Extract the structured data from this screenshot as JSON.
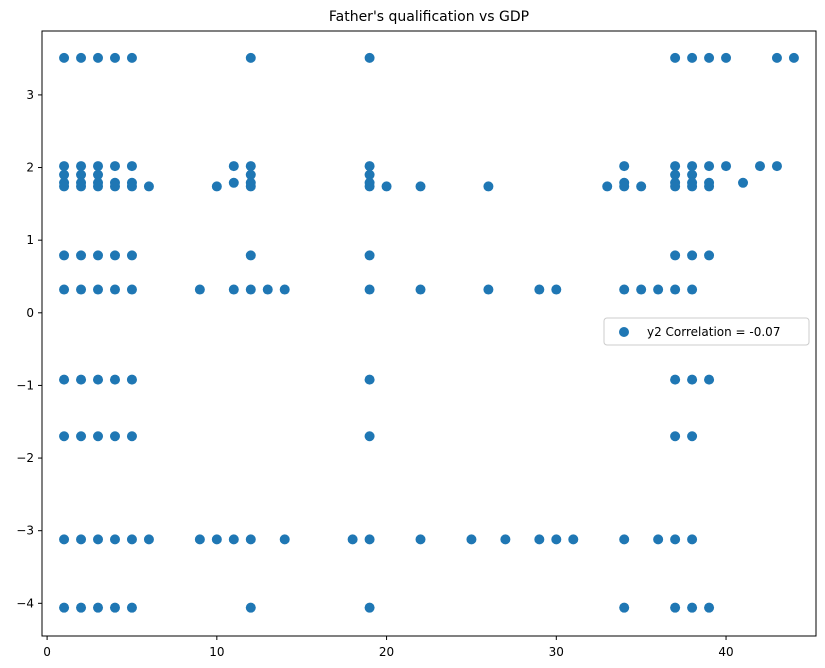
{
  "chart_data": {
    "type": "scatter",
    "title": "Father's qualification vs GDP",
    "xlabel": "",
    "ylabel": "",
    "xlim": [
      -0.3,
      45.3
    ],
    "ylim": [
      -4.45,
      3.88
    ],
    "xticks": [
      0,
      10,
      20,
      30,
      40
    ],
    "yticks": [
      -4,
      -3,
      -2,
      -1,
      0,
      1,
      2,
      3
    ],
    "grid": false,
    "legend_position": "center-right",
    "series": [
      {
        "name": "y2 Correlation = -0.07",
        "color": "#1f77b4",
        "points": [
          [
            1,
            3.51
          ],
          [
            2,
            3.51
          ],
          [
            3,
            3.51
          ],
          [
            4,
            3.51
          ],
          [
            5,
            3.51
          ],
          [
            12,
            3.51
          ],
          [
            19,
            3.51
          ],
          [
            37,
            3.51
          ],
          [
            38,
            3.51
          ],
          [
            39,
            3.51
          ],
          [
            40,
            3.51
          ],
          [
            43,
            3.51
          ],
          [
            44,
            3.51
          ],
          [
            1,
            2.02
          ],
          [
            2,
            2.02
          ],
          [
            3,
            2.02
          ],
          [
            4,
            2.02
          ],
          [
            5,
            2.02
          ],
          [
            11,
            2.02
          ],
          [
            12,
            2.02
          ],
          [
            19,
            2.02
          ],
          [
            34,
            2.02
          ],
          [
            37,
            2.02
          ],
          [
            38,
            2.02
          ],
          [
            39,
            2.02
          ],
          [
            40,
            2.02
          ],
          [
            42,
            2.02
          ],
          [
            43,
            2.02
          ],
          [
            1,
            1.9
          ],
          [
            2,
            1.9
          ],
          [
            3,
            1.9
          ],
          [
            12,
            1.9
          ],
          [
            19,
            1.9
          ],
          [
            37,
            1.9
          ],
          [
            38,
            1.9
          ],
          [
            1,
            1.79
          ],
          [
            2,
            1.79
          ],
          [
            3,
            1.79
          ],
          [
            4,
            1.79
          ],
          [
            5,
            1.79
          ],
          [
            11,
            1.79
          ],
          [
            12,
            1.79
          ],
          [
            19,
            1.79
          ],
          [
            34,
            1.79
          ],
          [
            37,
            1.79
          ],
          [
            38,
            1.79
          ],
          [
            39,
            1.79
          ],
          [
            41,
            1.79
          ],
          [
            1,
            1.74
          ],
          [
            2,
            1.74
          ],
          [
            3,
            1.74
          ],
          [
            4,
            1.74
          ],
          [
            5,
            1.74
          ],
          [
            6,
            1.74
          ],
          [
            10,
            1.74
          ],
          [
            12,
            1.74
          ],
          [
            19,
            1.74
          ],
          [
            20,
            1.74
          ],
          [
            22,
            1.74
          ],
          [
            26,
            1.74
          ],
          [
            33,
            1.74
          ],
          [
            34,
            1.74
          ],
          [
            35,
            1.74
          ],
          [
            37,
            1.74
          ],
          [
            38,
            1.74
          ],
          [
            39,
            1.74
          ],
          [
            1,
            0.79
          ],
          [
            2,
            0.79
          ],
          [
            3,
            0.79
          ],
          [
            4,
            0.79
          ],
          [
            5,
            0.79
          ],
          [
            12,
            0.79
          ],
          [
            19,
            0.79
          ],
          [
            37,
            0.79
          ],
          [
            38,
            0.79
          ],
          [
            39,
            0.79
          ],
          [
            1,
            0.32
          ],
          [
            2,
            0.32
          ],
          [
            3,
            0.32
          ],
          [
            4,
            0.32
          ],
          [
            5,
            0.32
          ],
          [
            9,
            0.32
          ],
          [
            11,
            0.32
          ],
          [
            12,
            0.32
          ],
          [
            13,
            0.32
          ],
          [
            14,
            0.32
          ],
          [
            19,
            0.32
          ],
          [
            22,
            0.32
          ],
          [
            26,
            0.32
          ],
          [
            29,
            0.32
          ],
          [
            30,
            0.32
          ],
          [
            34,
            0.32
          ],
          [
            35,
            0.32
          ],
          [
            36,
            0.32
          ],
          [
            37,
            0.32
          ],
          [
            38,
            0.32
          ],
          [
            1,
            -0.92
          ],
          [
            2,
            -0.92
          ],
          [
            3,
            -0.92
          ],
          [
            4,
            -0.92
          ],
          [
            5,
            -0.92
          ],
          [
            19,
            -0.92
          ],
          [
            37,
            -0.92
          ],
          [
            38,
            -0.92
          ],
          [
            39,
            -0.92
          ],
          [
            1,
            -1.7
          ],
          [
            2,
            -1.7
          ],
          [
            3,
            -1.7
          ],
          [
            4,
            -1.7
          ],
          [
            5,
            -1.7
          ],
          [
            19,
            -1.7
          ],
          [
            37,
            -1.7
          ],
          [
            38,
            -1.7
          ],
          [
            1,
            -3.12
          ],
          [
            2,
            -3.12
          ],
          [
            3,
            -3.12
          ],
          [
            4,
            -3.12
          ],
          [
            5,
            -3.12
          ],
          [
            6,
            -3.12
          ],
          [
            9,
            -3.12
          ],
          [
            10,
            -3.12
          ],
          [
            11,
            -3.12
          ],
          [
            12,
            -3.12
          ],
          [
            14,
            -3.12
          ],
          [
            18,
            -3.12
          ],
          [
            19,
            -3.12
          ],
          [
            22,
            -3.12
          ],
          [
            25,
            -3.12
          ],
          [
            27,
            -3.12
          ],
          [
            29,
            -3.12
          ],
          [
            30,
            -3.12
          ],
          [
            31,
            -3.12
          ],
          [
            34,
            -3.12
          ],
          [
            36,
            -3.12
          ],
          [
            37,
            -3.12
          ],
          [
            38,
            -3.12
          ],
          [
            1,
            -4.06
          ],
          [
            2,
            -4.06
          ],
          [
            3,
            -4.06
          ],
          [
            4,
            -4.06
          ],
          [
            5,
            -4.06
          ],
          [
            12,
            -4.06
          ],
          [
            19,
            -4.06
          ],
          [
            34,
            -4.06
          ],
          [
            37,
            -4.06
          ],
          [
            38,
            -4.06
          ],
          [
            39,
            -4.06
          ]
        ]
      }
    ]
  }
}
